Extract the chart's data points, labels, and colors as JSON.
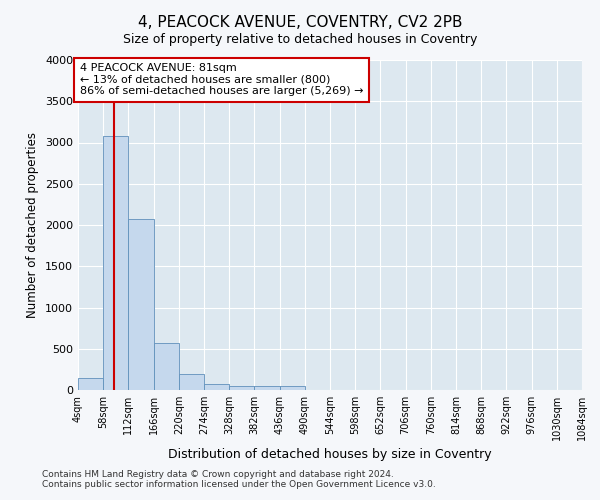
{
  "title": "4, PEACOCK AVENUE, COVENTRY, CV2 2PB",
  "subtitle": "Size of property relative to detached houses in Coventry",
  "xlabel": "Distribution of detached houses by size in Coventry",
  "ylabel": "Number of detached properties",
  "bin_labels": [
    "4sqm",
    "58sqm",
    "112sqm",
    "166sqm",
    "220sqm",
    "274sqm",
    "328sqm",
    "382sqm",
    "436sqm",
    "490sqm",
    "544sqm",
    "598sqm",
    "652sqm",
    "706sqm",
    "760sqm",
    "814sqm",
    "868sqm",
    "922sqm",
    "976sqm",
    "1030sqm",
    "1084sqm"
  ],
  "bin_edges": [
    4,
    58,
    112,
    166,
    220,
    274,
    328,
    382,
    436,
    490,
    544,
    598,
    652,
    706,
    760,
    814,
    868,
    922,
    976,
    1030,
    1084
  ],
  "bar_heights": [
    150,
    3080,
    2070,
    570,
    200,
    70,
    50,
    50,
    50,
    0,
    0,
    0,
    0,
    0,
    0,
    0,
    0,
    0,
    0,
    0
  ],
  "bar_color": "#c5d8ed",
  "bar_edge_color": "#6090bb",
  "property_line_x": 81,
  "property_line_color": "#cc0000",
  "annotation_text": "4 PEACOCK AVENUE: 81sqm\n← 13% of detached houses are smaller (800)\n86% of semi-detached houses are larger (5,269) →",
  "annotation_box_facecolor": "#ffffff",
  "annotation_box_edgecolor": "#cc0000",
  "ylim": [
    0,
    4000
  ],
  "yticks": [
    0,
    500,
    1000,
    1500,
    2000,
    2500,
    3000,
    3500,
    4000
  ],
  "fig_bg_color": "#f5f7fa",
  "plot_bg_color": "#dde8f0",
  "grid_color": "#ffffff",
  "footer_line1": "Contains HM Land Registry data © Crown copyright and database right 2024.",
  "footer_line2": "Contains public sector information licensed under the Open Government Licence v3.0."
}
